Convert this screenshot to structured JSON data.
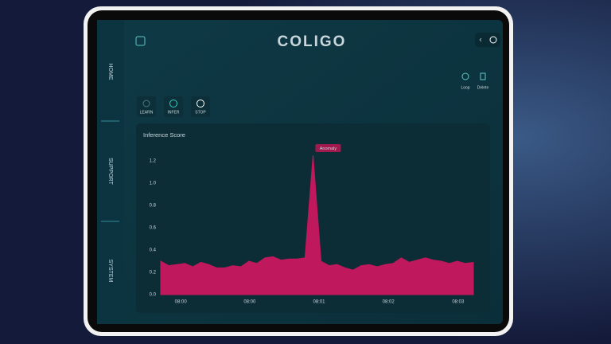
{
  "header": {
    "logo": "COLIGO",
    "actions": [
      "Loop",
      "Delete"
    ]
  },
  "nav": [
    "HOME",
    "SUPPORT",
    "SYSTEM"
  ],
  "controls": [
    "LEARN",
    "INFER",
    "STOP"
  ],
  "chart_data": {
    "type": "area",
    "title": "Inference Score",
    "annotation": "Anomaly",
    "color": "#c0185c",
    "values": [
      0.3,
      0.26,
      0.27,
      0.28,
      0.25,
      0.29,
      0.27,
      0.24,
      0.24,
      0.26,
      0.25,
      0.3,
      0.28,
      0.33,
      0.34,
      0.31,
      0.32,
      0.32,
      0.33,
      1.25,
      0.3,
      0.26,
      0.27,
      0.24,
      0.22,
      0.26,
      0.27,
      0.25,
      0.27,
      0.28,
      0.33,
      0.29,
      0.31,
      0.33,
      0.31,
      0.3,
      0.28,
      0.3,
      0.28,
      0.29
    ],
    "xlim": [
      0,
      39
    ],
    "xticks": [
      {
        "value": 2.5,
        "label": "08:00"
      },
      {
        "value": 11.1,
        "label": "08:00"
      },
      {
        "value": 19.75,
        "label": "08:01"
      },
      {
        "value": 28.4,
        "label": "08:02"
      },
      {
        "value": 37.1,
        "label": "08:03"
      }
    ],
    "ylim": [
      0,
      1.3
    ],
    "yticks": [
      {
        "value": 0,
        "label": "0.0"
      },
      0.2,
      0.4,
      0.6,
      0.8,
      {
        "value": 1,
        "label": "1.0"
      },
      1.2
    ],
    "grid": false
  }
}
